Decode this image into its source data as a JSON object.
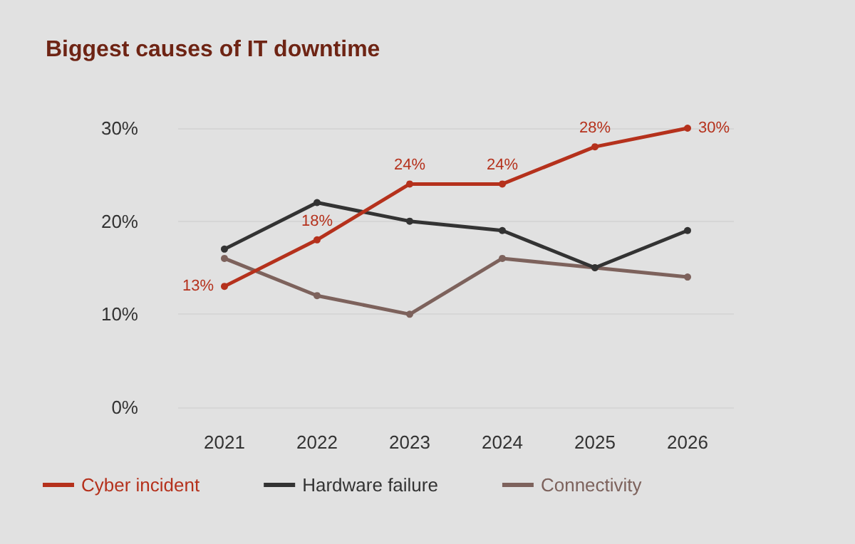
{
  "chart_data": {
    "type": "line",
    "title": "Biggest causes of IT downtime",
    "categories": [
      "2021",
      "2022",
      "2023",
      "2024",
      "2025",
      "2026"
    ],
    "series": [
      {
        "name": "Cyber incident",
        "color": "#b5311c",
        "values": [
          13,
          18,
          24,
          24,
          28,
          30
        ],
        "value_labels": [
          "13%",
          "18%",
          "24%",
          "24%",
          "28%",
          "30%"
        ]
      },
      {
        "name": "Hardware failure",
        "color": "#333333",
        "values": [
          17,
          22,
          20,
          19,
          15,
          19
        ]
      },
      {
        "name": "Connectivity",
        "color": "#7d625c",
        "values": [
          16,
          12,
          10,
          16,
          15,
          14
        ]
      }
    ],
    "ylim": [
      0,
      30
    ],
    "yticks": [
      {
        "value": 0,
        "label": "0%"
      },
      {
        "value": 10,
        "label": "10%"
      },
      {
        "value": 20,
        "label": "20%"
      },
      {
        "value": 30,
        "label": "30%"
      }
    ],
    "grid": "y",
    "legend": "bottom left",
    "marker": "circle",
    "line_style": "solid"
  }
}
